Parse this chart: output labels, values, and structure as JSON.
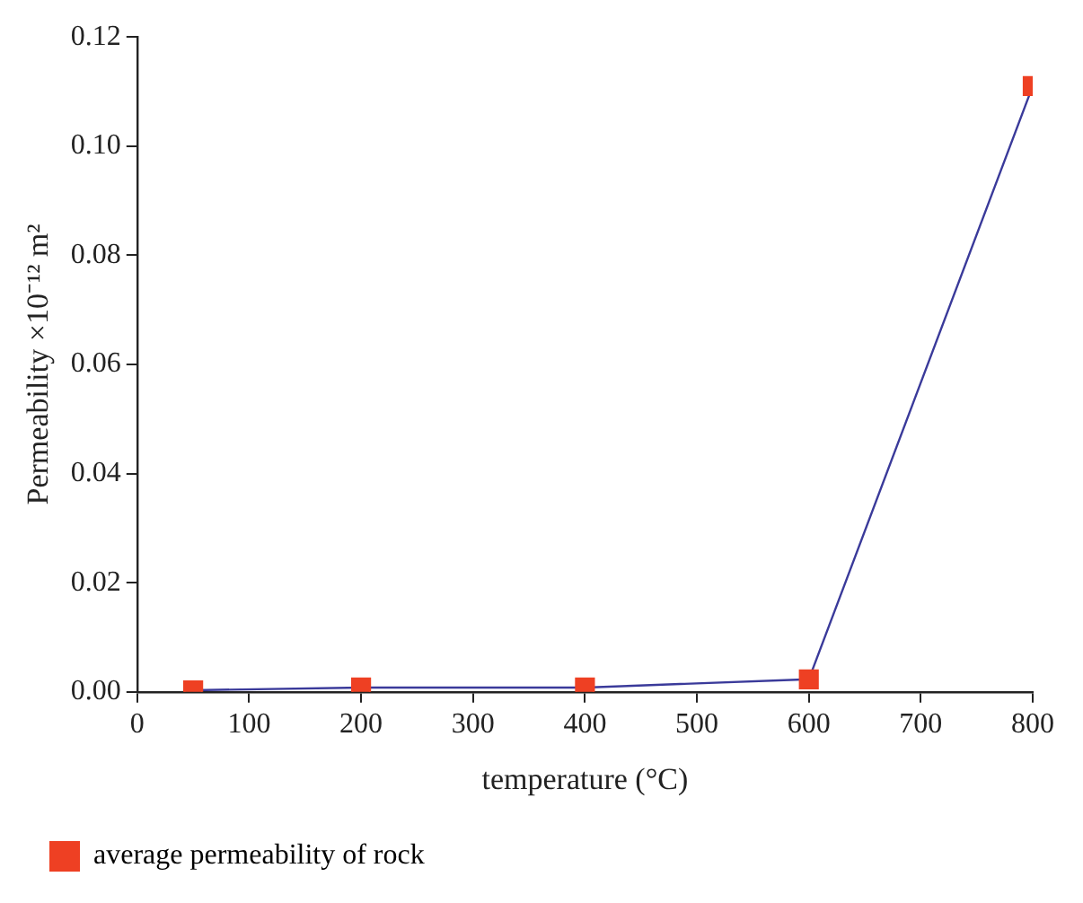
{
  "chart_data": {
    "type": "line",
    "xlabel": "temperature (°C)",
    "ylabel": "Permeability ×10⁻¹² m²",
    "x": [
      50,
      200,
      400,
      600,
      800
    ],
    "series": [
      {
        "name": "average permeability of rock",
        "color": "#ee4023",
        "values": [
          0.0003,
          0.0008,
          0.0008,
          0.0023,
          0.111
        ]
      }
    ],
    "xlim": [
      0,
      800
    ],
    "xticks": [
      0,
      100,
      200,
      300,
      400,
      500,
      600,
      700,
      800
    ],
    "ylim": [
      0,
      0.12
    ],
    "yticks": [
      {
        "value": 0,
        "label": "0.00"
      },
      {
        "value": 0.02,
        "label": "0.02"
      },
      {
        "value": 0.04,
        "label": "0.04"
      },
      {
        "value": 0.06,
        "label": "0.06"
      },
      {
        "value": 0.08,
        "label": "0.08"
      },
      {
        "value": 0.1,
        "label": "0.10"
      },
      {
        "value": 0.12,
        "label": "0.12"
      }
    ],
    "grid": false,
    "legend": "bottom",
    "marker": "square",
    "line_style": "solid"
  }
}
